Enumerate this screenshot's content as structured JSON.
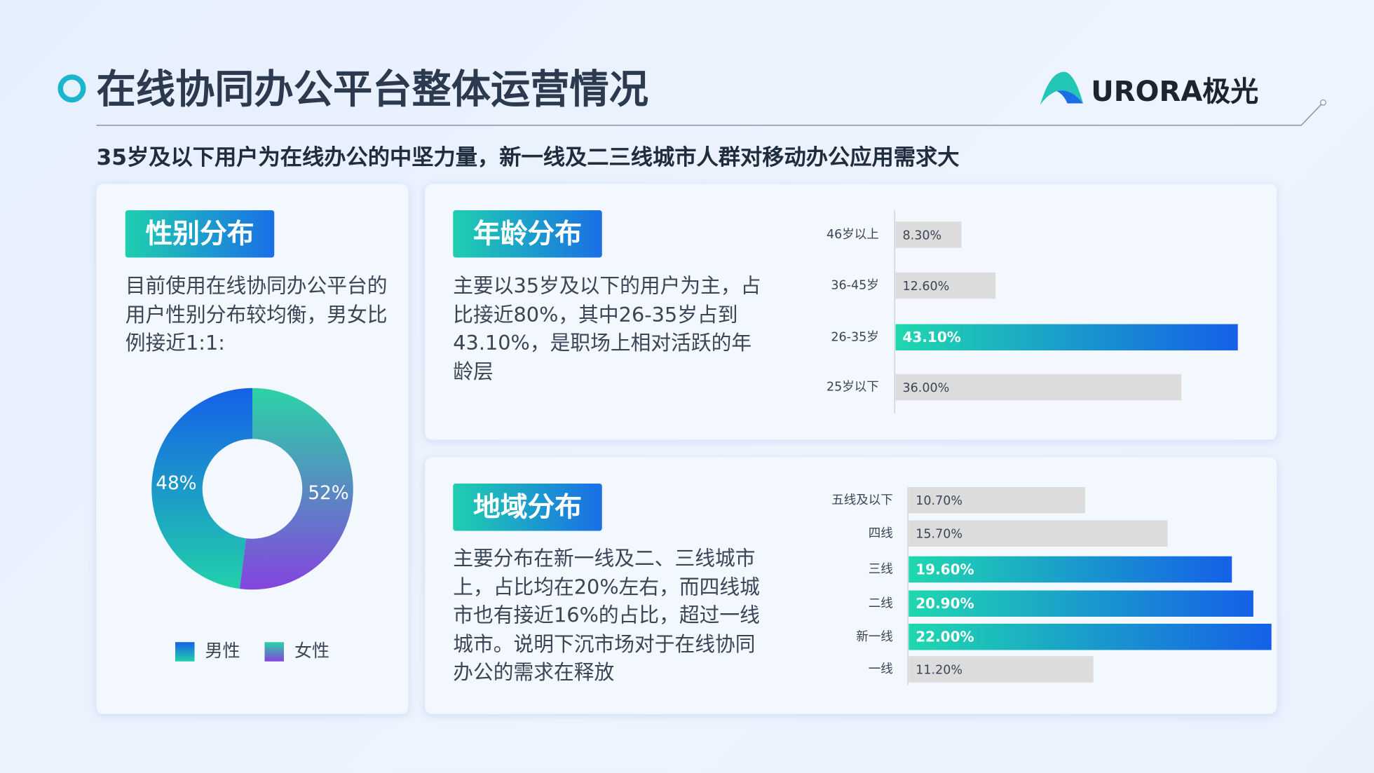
{
  "header": {
    "title": "在线协同办公平台整体运营情况",
    "brand": "URORA极光",
    "subtitle": "35岁及以下用户为在线办公的中坚力量，新一线及二三线城市人群对移动办公应用需求大"
  },
  "chart_data": [
    {
      "type": "donut",
      "title": "性别分布",
      "description": "目前使用在线协同办公平台的用户性别分布较均衡，男女比例接近1:1:",
      "categories": [
        "男性",
        "女性"
      ],
      "values": [
        48,
        52
      ],
      "value_labels": [
        "48%",
        "52%"
      ],
      "colors": [
        [
          "#1560e8",
          "#22d0aa"
        ],
        [
          "#2bd3a6",
          "#8444de"
        ]
      ]
    },
    {
      "type": "barh",
      "title": "年龄分布",
      "description": "主要以35岁及以下的用户为主，占比接近80%，其中26-35岁占到43.10%，是职场上相对活跃的年龄层",
      "categories": [
        "46岁以上",
        "36-45岁",
        "26-35岁",
        "25岁以下"
      ],
      "values": [
        8.3,
        12.6,
        43.1,
        36.0
      ],
      "value_labels": [
        "8.30%",
        "12.60%",
        "43.10%",
        "36.00%"
      ],
      "highlight": [
        false,
        false,
        true,
        false
      ],
      "color": "#dcdcdc",
      "highlight_colors": [
        "#1fd8ae",
        "#1560e8"
      ],
      "xlim": [
        0,
        48
      ]
    },
    {
      "type": "barh",
      "title": "地域分布",
      "description": "主要分布在新一线及二、三线城市上，占比均在20%左右，而四线城市也有接近16%的占比，超过一线城市。说明下沉市场对于在线协同办公的需求在释放",
      "categories": [
        "五线及以下",
        "四线",
        "三线",
        "二线",
        "新一线",
        "一线"
      ],
      "values": [
        10.7,
        15.7,
        19.6,
        20.9,
        22.0,
        11.2
      ],
      "value_labels": [
        "10.70%",
        "15.70%",
        "19.60%",
        "20.90%",
        "22.00%",
        "11.20%"
      ],
      "highlight": [
        false,
        false,
        true,
        true,
        true,
        false
      ],
      "color": "#dcdcdc",
      "highlight_colors": [
        "#1fd8ae",
        "#1560e8"
      ],
      "xlim": [
        0,
        22
      ]
    }
  ]
}
